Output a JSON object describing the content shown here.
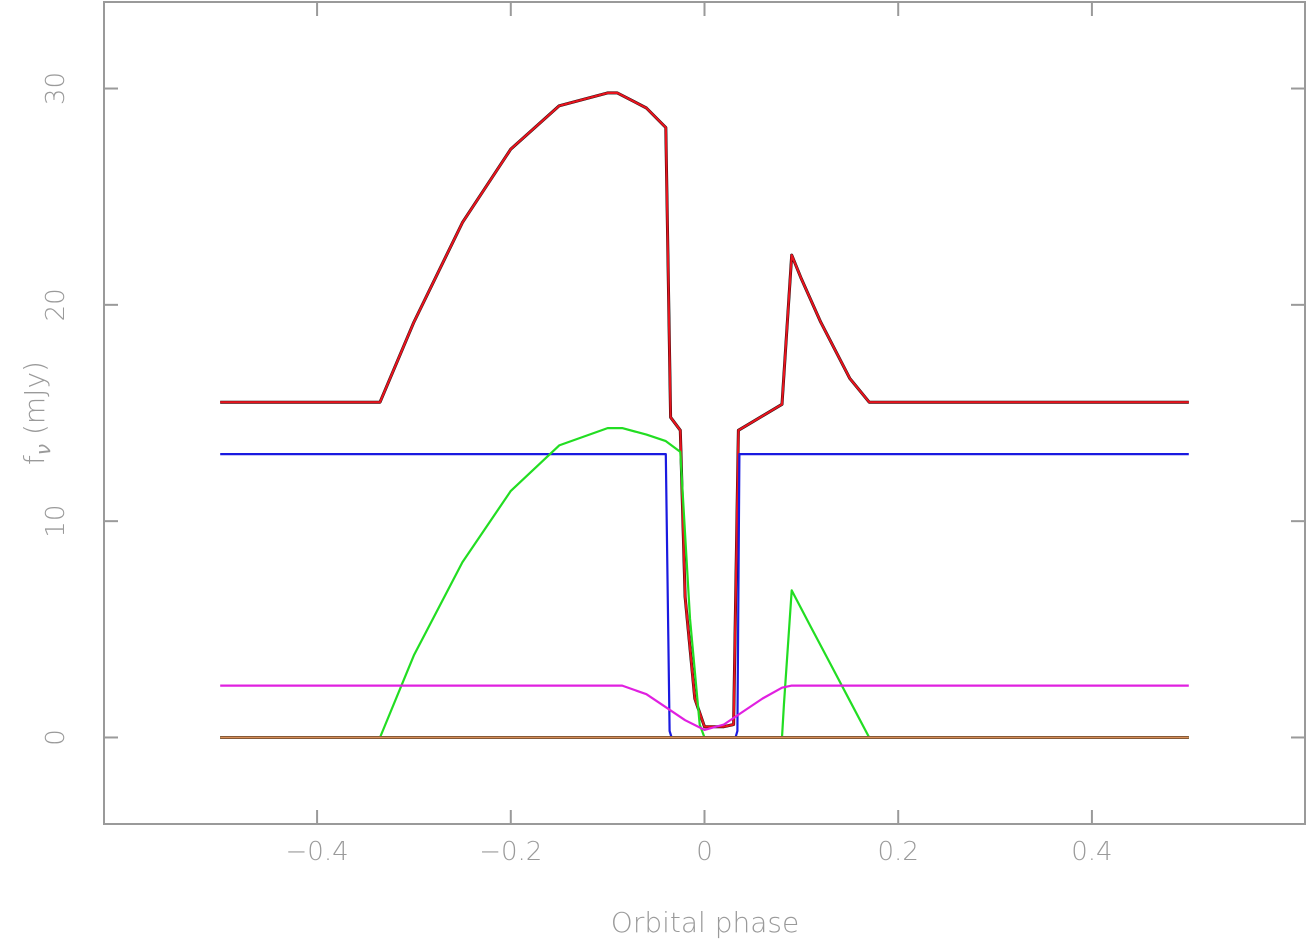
{
  "chart_data": {
    "type": "line",
    "title": "",
    "xlabel": "Orbital phase",
    "ylabel_main": "f",
    "ylabel_sub": "ν",
    "ylabel_unit": " (mJy)",
    "xlim": [
      -0.62,
      0.62
    ],
    "ylim": [
      -4,
      34
    ],
    "x_ticks": [
      -0.4,
      -0.2,
      0,
      0.2,
      0.4
    ],
    "x_tick_labels": [
      "−0.4",
      "−0.2",
      "0",
      "0.2",
      "0.4"
    ],
    "y_ticks": [
      0,
      10,
      20,
      30
    ],
    "y_tick_labels": [
      "0",
      "10",
      "20",
      "30"
    ],
    "grid": false,
    "series": [
      {
        "color": "#000000",
        "x": [
          -0.5,
          -0.45,
          -0.4,
          -0.35,
          -0.335,
          -0.3,
          -0.25,
          -0.2,
          -0.15,
          -0.1,
          -0.09,
          -0.06,
          -0.04,
          -0.035,
          -0.025,
          -0.02,
          -0.01,
          0,
          0.01,
          0.02,
          0.03,
          0.035,
          0.05,
          0.08,
          0.09,
          0.1,
          0.12,
          0.15,
          0.17,
          0.2,
          0.3,
          0.4,
          0.5
        ],
        "values": [
          15.5,
          15.5,
          15.5,
          15.5,
          15.5,
          19.2,
          23.8,
          27.2,
          29.2,
          29.8,
          29.8,
          29.1,
          28.2,
          14.8,
          14.2,
          6.5,
          1.8,
          0.5,
          0.5,
          0.5,
          0.6,
          14.2,
          14.6,
          15.4,
          22.3,
          21.2,
          19.2,
          16.6,
          15.5,
          15.5,
          15.5,
          15.5,
          15.5
        ]
      },
      {
        "color": "#e8141e",
        "x": [
          -0.5,
          -0.45,
          -0.4,
          -0.35,
          -0.335,
          -0.3,
          -0.25,
          -0.2,
          -0.15,
          -0.1,
          -0.09,
          -0.06,
          -0.04,
          -0.035,
          -0.025,
          -0.02,
          -0.01,
          0,
          0.01,
          0.02,
          0.03,
          0.035,
          0.05,
          0.08,
          0.09,
          0.1,
          0.12,
          0.15,
          0.17,
          0.2,
          0.3,
          0.4,
          0.5
        ],
        "values": [
          15.5,
          15.5,
          15.5,
          15.5,
          15.5,
          19.2,
          23.8,
          27.2,
          29.2,
          29.8,
          29.8,
          29.1,
          28.2,
          14.8,
          14.2,
          6.5,
          1.8,
          0.5,
          0.5,
          0.5,
          0.6,
          14.2,
          14.6,
          15.4,
          22.3,
          21.2,
          19.2,
          16.6,
          15.5,
          15.5,
          15.5,
          15.5,
          15.5
        ]
      },
      {
        "color": "#1a1ae0",
        "x": [
          -0.5,
          -0.2,
          -0.04,
          -0.036,
          -0.034,
          0,
          0.032,
          0.034,
          0.036,
          0.2,
          0.5
        ],
        "values": [
          13.1,
          13.1,
          13.1,
          0.3,
          0,
          0,
          0,
          0.3,
          13.1,
          13.1,
          13.1
        ]
      },
      {
        "color": "#22dd22",
        "x": [
          -0.5,
          -0.335,
          -0.3,
          -0.25,
          -0.2,
          -0.15,
          -0.1,
          -0.085,
          -0.06,
          -0.04,
          -0.025,
          -0.015,
          -0.005,
          0,
          0.08,
          0.082,
          0.09,
          0.11,
          0.13,
          0.15,
          0.17,
          0.3,
          0.5
        ],
        "values": [
          0,
          0,
          3.8,
          8.1,
          11.4,
          13.5,
          14.3,
          14.3,
          14.0,
          13.7,
          13.2,
          5.5,
          0.6,
          0,
          0,
          1.5,
          6.8,
          5.1,
          3.4,
          1.7,
          0,
          0,
          0
        ]
      },
      {
        "color": "#e020e0",
        "x": [
          -0.5,
          -0.3,
          -0.1,
          -0.085,
          -0.06,
          -0.04,
          -0.02,
          0,
          0.02,
          0.04,
          0.06,
          0.08,
          0.09,
          0.3,
          0.5
        ],
        "values": [
          2.4,
          2.4,
          2.4,
          2.4,
          2.0,
          1.4,
          0.8,
          0.35,
          0.6,
          1.2,
          1.8,
          2.3,
          2.4,
          2.4,
          2.4
        ]
      },
      {
        "color": "#000000",
        "x": [
          -0.5,
          -0.25,
          -0.1,
          -0.05,
          -0.03,
          -0.015,
          0,
          0.015,
          0.03,
          0.05,
          0.1,
          0.25,
          0.5
        ],
        "values": [
          0,
          0,
          0,
          0,
          0,
          0,
          0,
          0,
          0,
          0,
          0,
          0,
          0
        ]
      },
      {
        "color": "#d8905a",
        "x": [
          -0.5,
          0.5
        ],
        "values": [
          0,
          0
        ]
      }
    ]
  }
}
